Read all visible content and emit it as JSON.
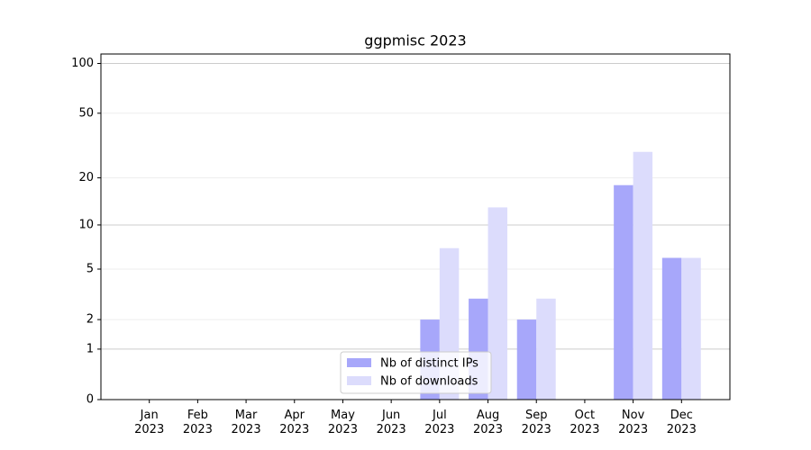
{
  "chart_data": {
    "type": "bar",
    "title": "ggpmisc 2023",
    "categories": [
      "Jan 2023",
      "Feb 2023",
      "Mar 2023",
      "Apr 2023",
      "May 2023",
      "Jun 2023",
      "Jul 2023",
      "Aug 2023",
      "Sep 2023",
      "Oct 2023",
      "Nov 2023",
      "Dec 2023"
    ],
    "series": [
      {
        "name": "Nb of distinct IPs",
        "color": "#a7a7fa",
        "values": [
          0,
          0,
          0,
          0,
          0,
          0,
          2,
          3,
          2,
          0,
          18,
          6
        ]
      },
      {
        "name": "Nb of downloads",
        "color": "#dcdcfc",
        "values": [
          0,
          0,
          0,
          0,
          0,
          0,
          7,
          13,
          3,
          0,
          29,
          6
        ]
      }
    ],
    "yscale": "log1p",
    "ylim": [
      0,
      114
    ],
    "yticks": [
      0,
      1,
      2,
      5,
      10,
      20,
      50,
      100
    ],
    "grid": true,
    "legend": "lower center"
  }
}
